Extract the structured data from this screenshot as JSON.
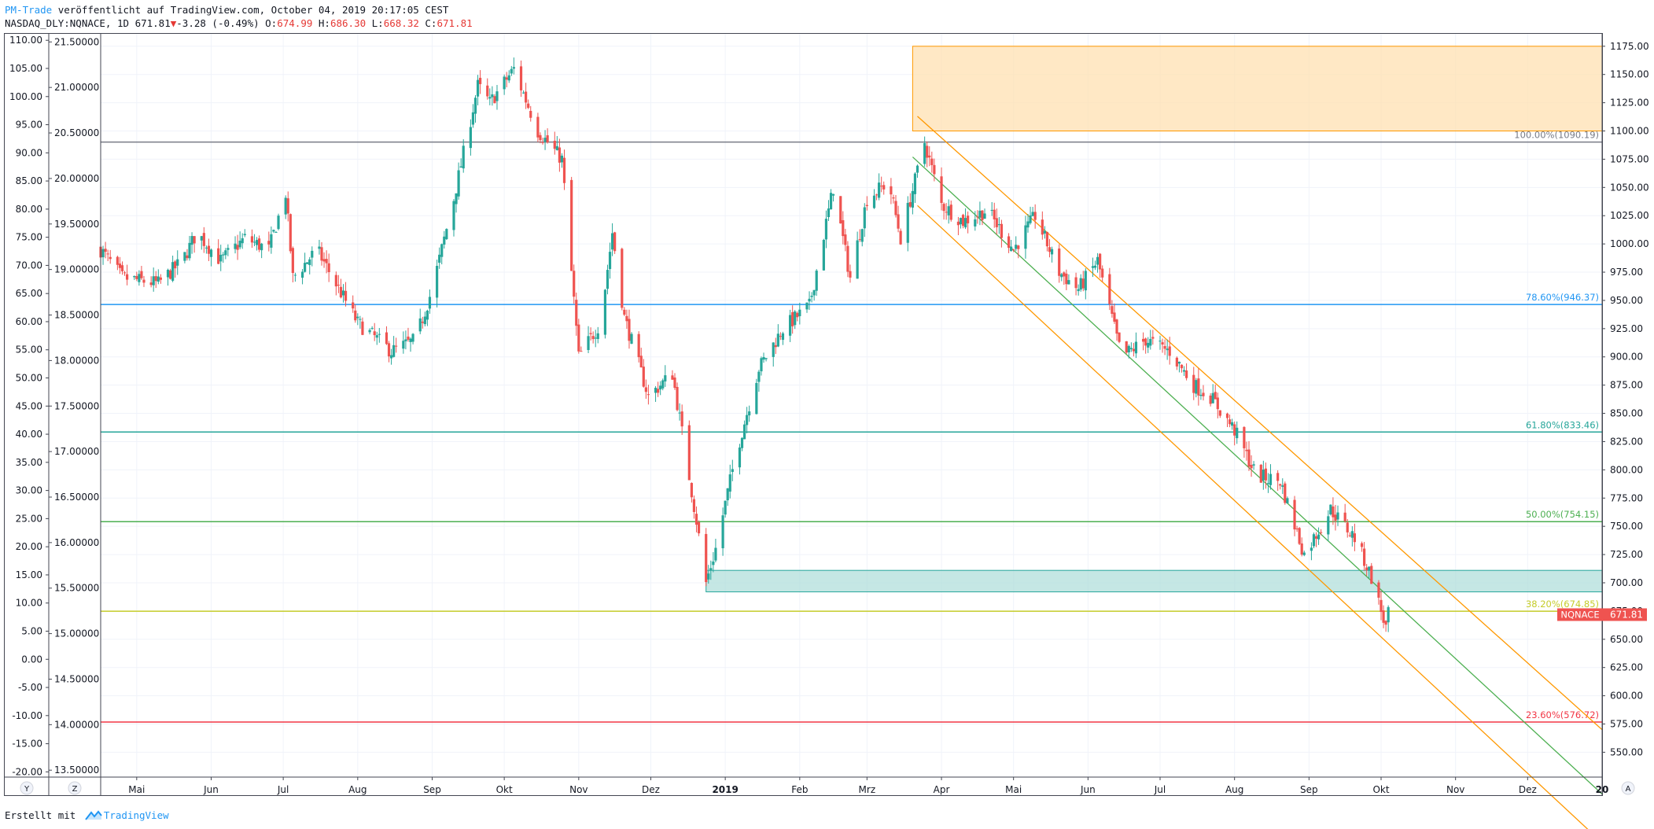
{
  "header": {
    "brand": "PM-Trade",
    "published": "veröffentlicht auf TradingView.com, October 04, 2019 20:17:05 CEST",
    "symbol": "NASDAQ_DLY:NQNACE, 1D",
    "last": "671.81",
    "arrow": "▼",
    "change": "-3.28 (-0.49%)",
    "o_label": "O:",
    "o_value": "674.99",
    "h_label": "H:",
    "h_value": "686.30",
    "l_label": "L:",
    "l_value": "668.32",
    "c_label": "C:",
    "c_value": "671.81"
  },
  "footer": {
    "created": "Erstellt mit",
    "brand": "TradingView"
  },
  "chart_data": {
    "type": "candlestick",
    "title": "NASDAQ_DLY:NQNACE, 1D",
    "xlabel": "",
    "ylabel": "",
    "symbol_tag": "NQNACE",
    "last_value": "671.81",
    "x_start": "2018-04-16",
    "x_end": "2020-01-01",
    "x_ticks": [
      {
        "date": "2018-05-01",
        "label": "Mai"
      },
      {
        "date": "2018-06-01",
        "label": "Jun"
      },
      {
        "date": "2018-07-01",
        "label": "Jul"
      },
      {
        "date": "2018-08-01",
        "label": "Aug"
      },
      {
        "date": "2018-09-01",
        "label": "Sep"
      },
      {
        "date": "2018-10-01",
        "label": "Okt"
      },
      {
        "date": "2018-11-01",
        "label": "Nov"
      },
      {
        "date": "2018-12-01",
        "label": "Dez"
      },
      {
        "date": "2019-01-01",
        "label": "2019",
        "bold": true
      },
      {
        "date": "2019-02-01",
        "label": "Feb"
      },
      {
        "date": "2019-03-01",
        "label": "Mrz"
      },
      {
        "date": "2019-04-01",
        "label": "Apr"
      },
      {
        "date": "2019-05-01",
        "label": "Mai"
      },
      {
        "date": "2019-06-01",
        "label": "Jun"
      },
      {
        "date": "2019-07-01",
        "label": "Jul"
      },
      {
        "date": "2019-08-01",
        "label": "Aug"
      },
      {
        "date": "2019-09-01",
        "label": "Sep"
      },
      {
        "date": "2019-10-01",
        "label": "Okt"
      },
      {
        "date": "2019-11-01",
        "label": "Nov"
      },
      {
        "date": "2019-12-01",
        "label": "Dez"
      },
      {
        "date": "2020-01-01",
        "label": "20",
        "bold": true
      }
    ],
    "y_right": {
      "ylim": [
        528,
        1186
      ],
      "ticks": [
        550,
        575,
        600,
        625,
        650,
        675,
        700,
        725,
        750,
        775,
        800,
        825,
        850,
        875,
        900,
        925,
        950,
        975,
        1000,
        1025,
        1050,
        1075,
        1100,
        1125,
        1150,
        1175
      ]
    },
    "y_left1": {
      "ylim": [
        -20.93,
        111.15
      ],
      "ticks": [
        -20,
        -15,
        -10,
        -5,
        0,
        5,
        10,
        15,
        20,
        25,
        30,
        35,
        40,
        45,
        50,
        55,
        60,
        65,
        70,
        75,
        80,
        85,
        90,
        95,
        100,
        105,
        110
      ]
    },
    "y_left2": {
      "ylim": [
        13.424,
        21.589
      ],
      "ticks": [
        "13.50000",
        "14.00000",
        "14.50000",
        "15.00000",
        "15.50000",
        "16.00000",
        "16.50000",
        "17.00000",
        "17.50000",
        "18.00000",
        "18.50000",
        "19.00000",
        "19.50000",
        "20.00000",
        "20.50000",
        "21.00000",
        "21.50000"
      ]
    },
    "price_path": [
      [
        "2018-04-16",
        995
      ],
      [
        "2018-04-25",
        970
      ],
      [
        "2018-05-10",
        965
      ],
      [
        "2018-05-20",
        985
      ],
      [
        "2018-05-26",
        1010
      ],
      [
        "2018-06-05",
        985
      ],
      [
        "2018-06-15",
        1005
      ],
      [
        "2018-06-25",
        995
      ],
      [
        "2018-07-02",
        1045
      ],
      [
        "2018-07-05",
        970
      ],
      [
        "2018-07-15",
        995
      ],
      [
        "2018-08-01",
        930
      ],
      [
        "2018-08-15",
        905
      ],
      [
        "2018-08-25",
        915
      ],
      [
        "2018-09-01",
        960
      ],
      [
        "2018-09-10",
        1040
      ],
      [
        "2018-09-20",
        1140
      ],
      [
        "2018-09-25",
        1125
      ],
      [
        "2018-10-05",
        1155
      ],
      [
        "2018-10-15",
        1100
      ],
      [
        "2018-10-25",
        1075
      ],
      [
        "2018-11-01",
        900
      ],
      [
        "2018-11-10",
        930
      ],
      [
        "2018-11-15",
        1010
      ],
      [
        "2018-11-20",
        935
      ],
      [
        "2018-11-30",
        865
      ],
      [
        "2018-12-10",
        885
      ],
      [
        "2018-12-20",
        755
      ],
      [
        "2018-12-24",
        700
      ],
      [
        "2018-12-28",
        730
      ],
      [
        "2019-01-05",
        810
      ],
      [
        "2019-01-15",
        890
      ],
      [
        "2019-01-25",
        925
      ],
      [
        "2019-02-05",
        945
      ],
      [
        "2019-02-15",
        1050
      ],
      [
        "2019-02-22",
        970
      ],
      [
        "2019-03-01",
        1040
      ],
      [
        "2019-03-10",
        1055
      ],
      [
        "2019-03-15",
        1005
      ],
      [
        "2019-03-25",
        1090
      ],
      [
        "2019-04-01",
        1035
      ],
      [
        "2019-04-10",
        1020
      ],
      [
        "2019-04-20",
        1030
      ],
      [
        "2019-05-01",
        995
      ],
      [
        "2019-05-10",
        1025
      ],
      [
        "2019-05-20",
        975
      ],
      [
        "2019-05-28",
        960
      ],
      [
        "2019-06-05",
        985
      ],
      [
        "2019-06-15",
        900
      ],
      [
        "2019-06-25",
        915
      ],
      [
        "2019-07-05",
        905
      ],
      [
        "2019-07-15",
        875
      ],
      [
        "2019-07-22",
        865
      ],
      [
        "2019-08-01",
        835
      ],
      [
        "2019-08-10",
        795
      ],
      [
        "2019-08-20",
        790
      ],
      [
        "2019-08-30",
        725
      ],
      [
        "2019-09-10",
        765
      ],
      [
        "2019-09-20",
        740
      ],
      [
        "2019-09-27",
        705
      ],
      [
        "2019-10-03",
        660
      ],
      [
        "2019-10-04",
        671.81
      ]
    ],
    "fib_levels": [
      {
        "label": "100.00%(1090.19)",
        "value": 1090.19,
        "color": "#787b86"
      },
      {
        "label": "78.60%(946.37)",
        "value": 946.37,
        "color": "#2196f3"
      },
      {
        "label": "61.80%(833.46)",
        "value": 833.46,
        "color": "#26a69a"
      },
      {
        "label": "50.00%(754.15)",
        "value": 754.15,
        "color": "#4caf50"
      },
      {
        "label": "38.20%(674.85)",
        "value": 674.85,
        "color": "#c5cc2a"
      },
      {
        "label": "23.60%(576.72)",
        "value": 576.72,
        "color": "#f23645"
      }
    ],
    "supply_zone": {
      "x_from": "2019-03-20",
      "x_to": "2020-01-01",
      "y_from": 1100,
      "y_to": 1175,
      "color": "#ffe0b2"
    },
    "demand_zone": {
      "x_from": "2018-12-24",
      "x_to": "2020-01-01",
      "y_from": 692,
      "y_to": 711,
      "color": "#b2dfdb"
    },
    "channel": [
      {
        "name": "upper",
        "x1": "2019-03-22",
        "y1": 1113,
        "x2": "2020-01-01",
        "y2": 570,
        "color": "#ff9800"
      },
      {
        "name": "middle",
        "x1": "2019-03-20",
        "y1": 1077,
        "x2": "2020-01-01",
        "y2": 513,
        "color": "#4caf50"
      },
      {
        "name": "lower",
        "x1": "2019-03-22",
        "y1": 1034,
        "x2": "2020-01-01",
        "y2": 470,
        "color": "#ff9800"
      }
    ],
    "up_color": "#26a69a",
    "down_color": "#ef5350",
    "grid": true
  }
}
